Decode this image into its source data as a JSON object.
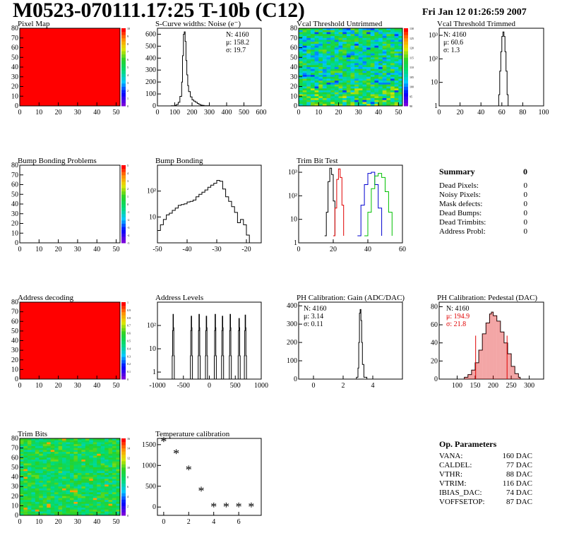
{
  "header": {
    "title": "M0523-070111.17:25 T-10b (C12)",
    "date": "Fri Jan 12 01:26:59 2007"
  },
  "chart_data": [
    {
      "id": "pixel_map",
      "type": "heatmap",
      "title": "Pixel Map",
      "xlim": [
        0,
        52
      ],
      "ylim": [
        0,
        80
      ],
      "xticks": [
        "0",
        "10",
        "20",
        "30",
        "40",
        "50"
      ],
      "yticks": [
        "0",
        "10",
        "20",
        "30",
        "40",
        "50",
        "60",
        "70",
        "80"
      ],
      "colorbar": [
        "0",
        "1",
        "2",
        "3",
        "4",
        "5",
        "6",
        "7",
        "8",
        "9",
        "10"
      ],
      "fill": "uniform-max",
      "fill_color": "#ff0000"
    },
    {
      "id": "scurve_widths",
      "type": "line",
      "title": "S-Curve widths: Noise (e⁻)",
      "xlim": [
        0,
        600
      ],
      "ylim": [
        0,
        650
      ],
      "xticks": [
        "0",
        "100",
        "200",
        "300",
        "400",
        "500",
        "600"
      ],
      "yticks": [
        "0",
        "100",
        "200",
        "300",
        "400",
        "500",
        "600"
      ],
      "x": [
        60,
        80,
        100,
        110,
        120,
        130,
        140,
        145,
        150,
        155,
        160,
        165,
        170,
        175,
        180,
        190,
        200,
        210,
        220,
        230,
        240,
        250,
        260,
        270,
        290,
        300
      ],
      "y": [
        0,
        1,
        4,
        12,
        30,
        80,
        200,
        420,
        600,
        620,
        540,
        380,
        260,
        170,
        120,
        75,
        50,
        40,
        30,
        20,
        12,
        6,
        4,
        2,
        1,
        0
      ],
      "stats": {
        "N": "N: 4160",
        "mean": "μ: 158.2",
        "sigma": "σ: 19.7"
      }
    },
    {
      "id": "vcal_untrimmed",
      "type": "heatmap",
      "title": "Vcal Threshold Untrimmed",
      "xlim": [
        0,
        52
      ],
      "ylim": [
        0,
        80
      ],
      "xticks": [
        "0",
        "10",
        "20",
        "30",
        "40",
        "50"
      ],
      "yticks": [
        "0",
        "10",
        "20",
        "30",
        "40",
        "50",
        "60",
        "70",
        "80"
      ],
      "colorbar": [
        "90",
        "95",
        "100",
        "105",
        "110",
        "115",
        "120",
        "125",
        "130"
      ],
      "fill": "noisy-mid"
    },
    {
      "id": "vcal_trimmed",
      "type": "line",
      "title": "Vcal Threshold Trimmed",
      "log_y": true,
      "xlim": [
        0,
        100
      ],
      "ylim": [
        1,
        2000
      ],
      "xticks": [
        "0",
        "20",
        "40",
        "60",
        "80",
        "100"
      ],
      "yticks": [
        "1",
        "10",
        "10²",
        "10³"
      ],
      "x": [
        56,
        57,
        58,
        59,
        60,
        61,
        62,
        63,
        64,
        65,
        66
      ],
      "y": [
        1,
        3,
        30,
        200,
        900,
        1400,
        900,
        200,
        30,
        3,
        1
      ],
      "stats": {
        "N": "N: 4160",
        "mean": "μ: 60.6",
        "sigma": "σ:  1.3"
      }
    },
    {
      "id": "bump_problems",
      "type": "heatmap",
      "title": "Bump Bonding Problems",
      "xlim": [
        0,
        52
      ],
      "ylim": [
        0,
        80
      ],
      "xticks": [
        "0",
        "10",
        "20",
        "30",
        "40",
        "50"
      ],
      "yticks": [
        "0",
        "10",
        "20",
        "30",
        "40",
        "50",
        "60",
        "70",
        "80"
      ],
      "colorbar": [
        "-5",
        "-4",
        "-3",
        "-2",
        "-1",
        "0",
        "1",
        "2",
        "3",
        "4",
        "5"
      ],
      "fill": "empty"
    },
    {
      "id": "bump_bonding",
      "type": "line",
      "title": "Bump Bonding",
      "log_y": true,
      "xlim": [
        -50,
        -15
      ],
      "ylim": [
        1,
        1000
      ],
      "xticks": [
        "-50",
        "-40",
        "-30",
        "-20"
      ],
      "yticks": [
        "10",
        "10²"
      ],
      "x": [
        -50,
        -49,
        -48,
        -47,
        -46,
        -45,
        -44,
        -43,
        -42,
        -41,
        -40,
        -39,
        -38,
        -37,
        -36,
        -35,
        -34,
        -33,
        -32,
        -31,
        -30,
        -29,
        -28,
        -27,
        -26,
        -25,
        -24,
        -23,
        -22,
        -21,
        -20,
        -19,
        -18
      ],
      "y": [
        3,
        5,
        8,
        12,
        14,
        18,
        22,
        28,
        30,
        32,
        38,
        40,
        45,
        60,
        75,
        90,
        110,
        140,
        170,
        200,
        260,
        240,
        120,
        60,
        40,
        25,
        15,
        6,
        8,
        5,
        2,
        1,
        1
      ],
      "stats": {}
    },
    {
      "id": "trim_bit_test",
      "type": "line",
      "title": "Trim Bit Test",
      "log_y": true,
      "xlim": [
        0,
        60
      ],
      "ylim": [
        1,
        2000
      ],
      "xticks": [
        "0",
        "20",
        "40",
        "60"
      ],
      "yticks": [
        "1",
        "10",
        "10²",
        "10³"
      ],
      "series": [
        {
          "color": "#000000",
          "x": [
            15,
            16,
            17,
            18,
            19,
            20,
            21
          ],
          "y": [
            2,
            20,
            400,
            1500,
            800,
            60,
            2
          ]
        },
        {
          "color": "#e00000",
          "x": [
            20,
            21,
            22,
            23,
            24,
            25,
            26
          ],
          "y": [
            2,
            30,
            500,
            1400,
            600,
            40,
            2
          ]
        },
        {
          "color": "#0000d0",
          "x": [
            34,
            36,
            38,
            40,
            42,
            44,
            46,
            48
          ],
          "y": [
            2,
            40,
            300,
            900,
            1000,
            300,
            30,
            2
          ]
        },
        {
          "color": "#00c000",
          "x": [
            38,
            40,
            42,
            44,
            46,
            48,
            50,
            52,
            54
          ],
          "y": [
            2,
            20,
            200,
            700,
            900,
            600,
            150,
            20,
            2
          ]
        }
      ],
      "stats": {}
    },
    {
      "id": "address_decoding",
      "type": "heatmap",
      "title": "Address decoding",
      "xlim": [
        0,
        52
      ],
      "ylim": [
        0,
        80
      ],
      "xticks": [
        "0",
        "10",
        "20",
        "30",
        "40",
        "50"
      ],
      "yticks": [
        "0",
        "10",
        "20",
        "30",
        "40",
        "50",
        "60",
        "70",
        "80"
      ],
      "colorbar": [
        "0",
        "0.1",
        "0.2",
        "0.3",
        "0.4",
        "0.5",
        "0.6",
        "0.7",
        "0.8",
        "0.9",
        "1"
      ],
      "fill": "uniform-max",
      "fill_color": "#ff0000"
    },
    {
      "id": "address_levels",
      "type": "line",
      "title": "Address Levels",
      "log_y": true,
      "xlim": [
        -1000,
        1000
      ],
      "ylim": [
        0.5,
        1000
      ],
      "xticks": [
        "-1000",
        "-500",
        "0",
        "500",
        "1000"
      ],
      "yticks": [
        "1",
        "10",
        "10²"
      ],
      "peaks": [
        -700,
        -350,
        -200,
        -60,
        110,
        250,
        400,
        570,
        690
      ],
      "peak_heights": [
        300,
        250,
        300,
        250,
        300,
        250,
        300,
        200,
        280
      ],
      "stats": {}
    },
    {
      "id": "ph_gain",
      "type": "line",
      "title": "PH Calibration: Gain (ADC/DAC)",
      "xlim": [
        -1,
        6
      ],
      "ylim": [
        0,
        420
      ],
      "xticks": [
        "0",
        "2",
        "4"
      ],
      "yticks": [
        "0",
        "100",
        "200",
        "300",
        "400"
      ],
      "x": [
        2.7,
        2.9,
        3.0,
        3.05,
        3.1,
        3.15,
        3.2,
        3.25,
        3.3,
        3.4,
        3.6
      ],
      "y": [
        0,
        10,
        60,
        200,
        360,
        380,
        320,
        200,
        80,
        10,
        0
      ],
      "stats": {
        "N": "N: 4160",
        "mean": "μ: 3.14",
        "sigma": "σ: 0.11"
      }
    },
    {
      "id": "ph_pedestal",
      "type": "line",
      "title": "PH Calibration: Pedestal (DAC)",
      "xlim": [
        50,
        340
      ],
      "ylim": [
        0,
        85
      ],
      "xticks": [
        "100",
        "150",
        "200",
        "250",
        "300"
      ],
      "yticks": [
        "0",
        "20",
        "40",
        "60",
        "80"
      ],
      "x": [
        110,
        120,
        130,
        140,
        150,
        160,
        170,
        180,
        190,
        195,
        200,
        210,
        220,
        230,
        240,
        250,
        260,
        270,
        275
      ],
      "y": [
        0,
        2,
        5,
        10,
        18,
        32,
        50,
        62,
        72,
        74,
        70,
        64,
        52,
        40,
        28,
        14,
        6,
        2,
        0
      ],
      "fit_lines": [
        151.3,
        238.5
      ],
      "stats": {
        "N": "N: 4160",
        "mean": "μ: 194.9",
        "sigma": "σ: 21.8"
      }
    },
    {
      "id": "trim_bits",
      "type": "heatmap",
      "title": "Trim Bits",
      "xlim": [
        0,
        52
      ],
      "ylim": [
        0,
        80
      ],
      "xticks": [
        "0",
        "10",
        "20",
        "30",
        "40",
        "50"
      ],
      "yticks": [
        "0",
        "10",
        "20",
        "30",
        "40",
        "50",
        "60",
        "70",
        "80"
      ],
      "colorbar": [
        "0",
        "2",
        "4",
        "6",
        "8",
        "10",
        "12",
        "14",
        "16"
      ],
      "fill": "noisy-green"
    },
    {
      "id": "temperature",
      "type": "scatter",
      "title": "Temperature calibration",
      "xlim": [
        -0.5,
        7.8
      ],
      "ylim": [
        -200,
        1650
      ],
      "xticks": [
        "0",
        "2",
        "4",
        "6"
      ],
      "yticks": [
        "0",
        "500",
        "1000",
        "1500"
      ],
      "x": [
        0,
        1,
        2,
        3,
        4,
        5,
        6,
        7
      ],
      "y": [
        1560,
        1270,
        880,
        370,
        -10,
        -10,
        -10,
        -10
      ],
      "stats": {}
    }
  ],
  "summary": {
    "title": "Summary",
    "total": "0",
    "rows": [
      {
        "label": "Dead Pixels:",
        "value": "0"
      },
      {
        "label": "Noisy Pixels:",
        "value": "0"
      },
      {
        "label": "Mask defects:",
        "value": "0"
      },
      {
        "label": "Dead Bumps:",
        "value": "0"
      },
      {
        "label": "Dead Trimbits:",
        "value": "0"
      },
      {
        "label": "Address Probl:",
        "value": "0"
      }
    ]
  },
  "op_params": {
    "title": "Op. Parameters",
    "rows": [
      {
        "label": "VANA:",
        "value": "160 DAC"
      },
      {
        "label": "CALDEL:",
        "value": "77 DAC"
      },
      {
        "label": "VTHR:",
        "value": "88 DAC"
      },
      {
        "label": "VTRIM:",
        "value": "116 DAC"
      },
      {
        "label": "IBIAS_DAC:",
        "value": "74 DAC"
      },
      {
        "label": "VOFFSETOP:",
        "value": "87 DAC"
      }
    ]
  }
}
